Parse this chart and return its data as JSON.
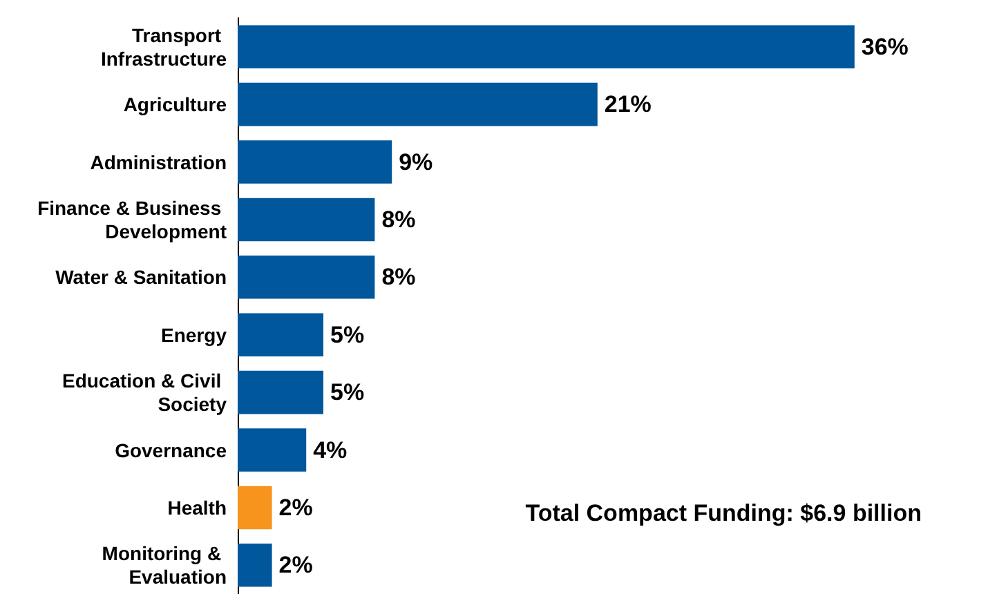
{
  "chart_data": {
    "type": "bar",
    "orientation": "horizontal",
    "categories": [
      "Transport Infrastructure",
      "Agriculture",
      "Administration",
      "Finance & Business Development",
      "Water & Sanitation",
      "Energy",
      "Education & Civil Society",
      "Governance",
      "Health",
      "Monitoring & Evaluation"
    ],
    "values": [
      36,
      21,
      9,
      8,
      8,
      5,
      5,
      4,
      2,
      2
    ],
    "colors": [
      "#00579b",
      "#00579b",
      "#00579b",
      "#00579b",
      "#00579b",
      "#00579b",
      "#00579b",
      "#00579b",
      "#f7941d",
      "#00579b"
    ],
    "value_labels": [
      "36%",
      "21%",
      "9%",
      "8%",
      "8%",
      "5%",
      "5%",
      "4%",
      "2%",
      "2%"
    ],
    "annotations": [
      "Total Compact Funding: $6.9 billion"
    ],
    "grid": false
  }
}
